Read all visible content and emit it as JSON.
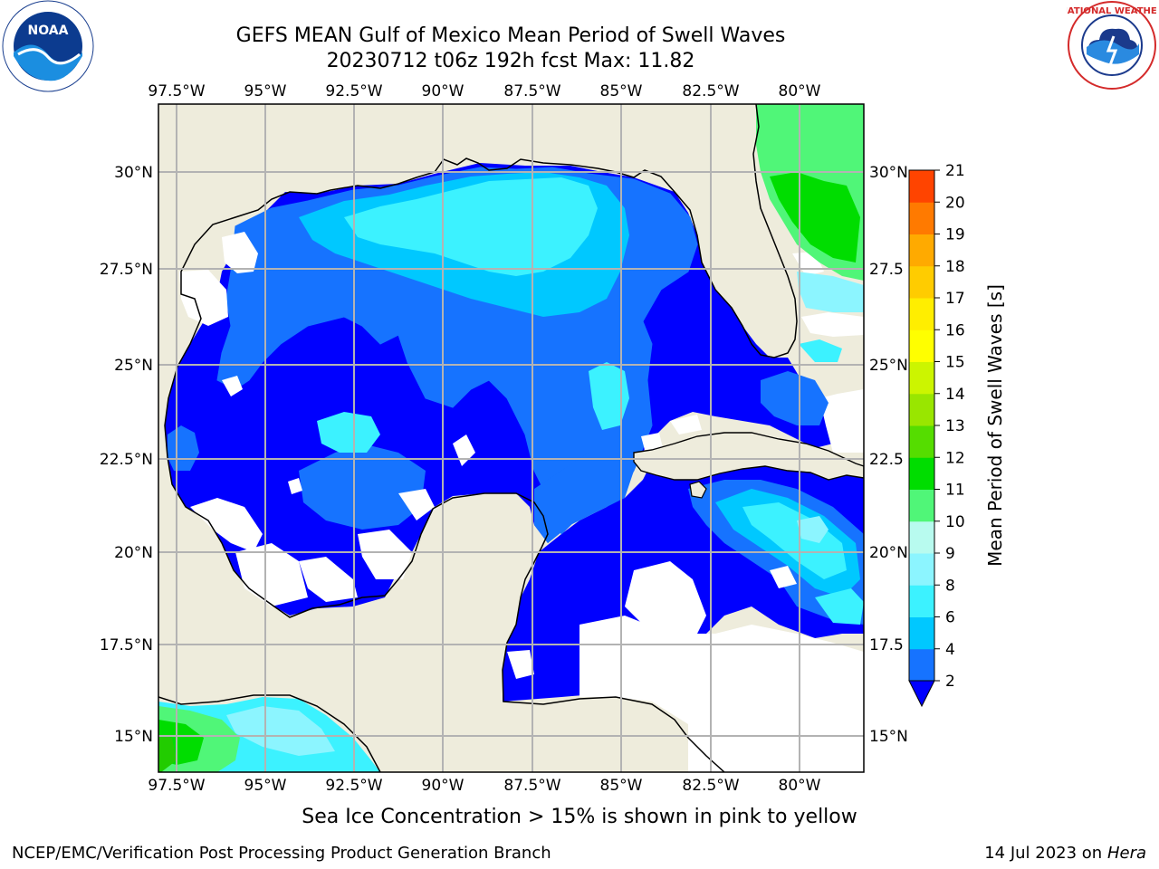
{
  "header": {
    "title_line1": "GEFS MEAN Gulf of Mexico Mean Period of Swell Waves",
    "title_line2": "20230712 t06z 192h fcst   Max: 11.82"
  },
  "logos": {
    "left": {
      "name": "noaa-logo",
      "text": "NOAA"
    },
    "right": {
      "name": "national-weather-service-logo",
      "text": "NATIONAL WEATHER SERVICE"
    }
  },
  "map": {
    "projection": "plate carree",
    "lon_range": [
      -98.0,
      -78.2
    ],
    "lat_range": [
      14.0,
      32.0
    ],
    "gridlines": true,
    "top_lon_labels": [
      "97.5°W",
      "95°W",
      "92.5°W",
      "90°W",
      "87.5°W",
      "85°W",
      "82.5°W",
      "80°W"
    ],
    "bottom_lon_labels": [
      "97.5°W",
      "95°W",
      "92.5°W",
      "90°W",
      "87.5°W",
      "85°W",
      "82.5°W",
      "80°W"
    ],
    "left_lat_labels": [
      "30°N",
      "27.5°N",
      "25°N",
      "22.5°N",
      "20°N",
      "17.5°N",
      "15°N"
    ],
    "right_lat_labels": [
      "30°N",
      "27.5",
      "25°N",
      "22.5",
      "20°N",
      "17.5",
      "15°N"
    ],
    "land_color": "#eeecdc",
    "ocean_missing_color": "#ffffff"
  },
  "colorbar": {
    "label": "Mean Period of Swell Waves [s]",
    "tick_labels": [
      "2",
      "4",
      "6",
      "8",
      "9",
      "10",
      "11",
      "12",
      "13",
      "14",
      "15",
      "16",
      "17",
      "18",
      "19",
      "20",
      "21"
    ],
    "extend": "min",
    "under_color": "#0000ff",
    "colors": [
      "#1673ff",
      "#00c8ff",
      "#3cf2ff",
      "#8cf5ff",
      "#b8fbef",
      "#50f678",
      "#00dd00",
      "#55dd00",
      "#99e600",
      "#ccf500",
      "#ffff00",
      "#ffee00",
      "#ffcc00",
      "#ffaa00",
      "#ff7a00",
      "#ff4400",
      "#ff0000"
    ]
  },
  "footer": {
    "ice_note": "Sea Ice Concentration > 15% is shown in pink to yellow",
    "org": "NCEP/EMC/Verification Post Processing Product Generation Branch",
    "date_prefix": "14 Jul 2023 on ",
    "host": "Hera"
  }
}
